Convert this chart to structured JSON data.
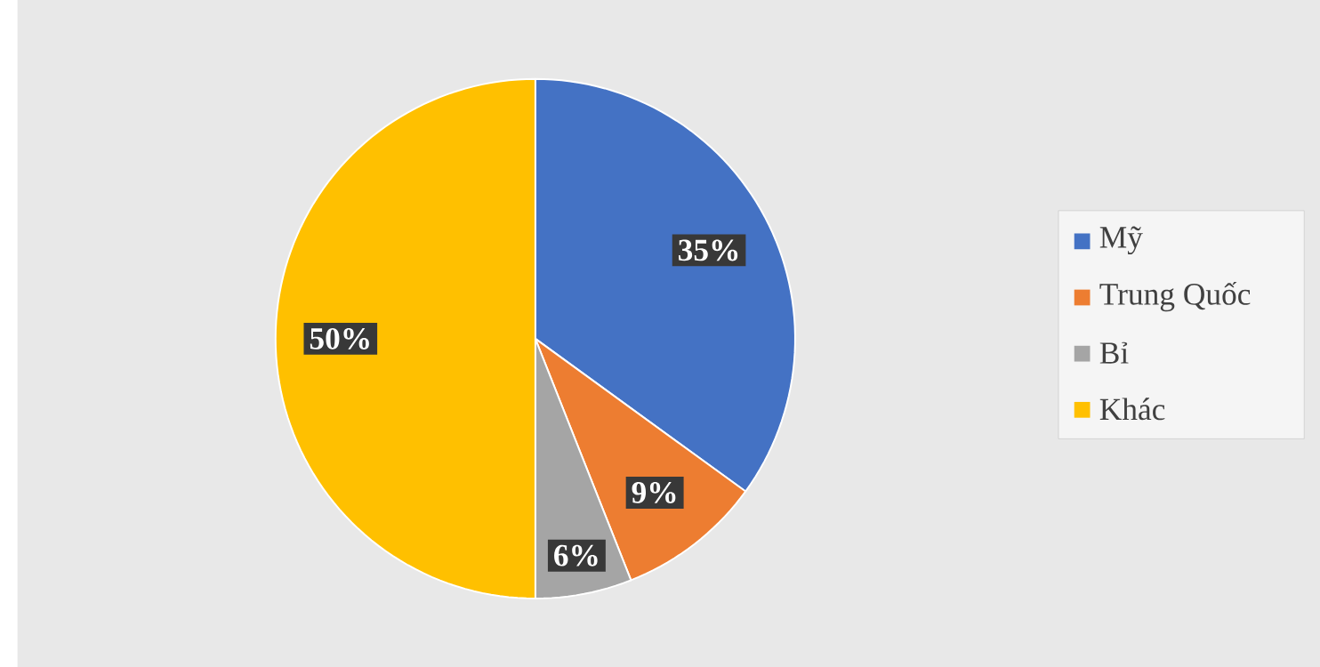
{
  "chart_data": {
    "type": "pie",
    "categories": [
      "Mỹ",
      "Trung Quốc",
      "Bỉ",
      "Khác"
    ],
    "values": [
      35,
      9,
      6,
      50
    ],
    "colors": [
      "#4472c4",
      "#ed7d31",
      "#a5a5a5",
      "#ffc000"
    ],
    "value_labels": [
      "35%",
      "9%",
      "6%",
      "50%"
    ],
    "legend": "right"
  }
}
